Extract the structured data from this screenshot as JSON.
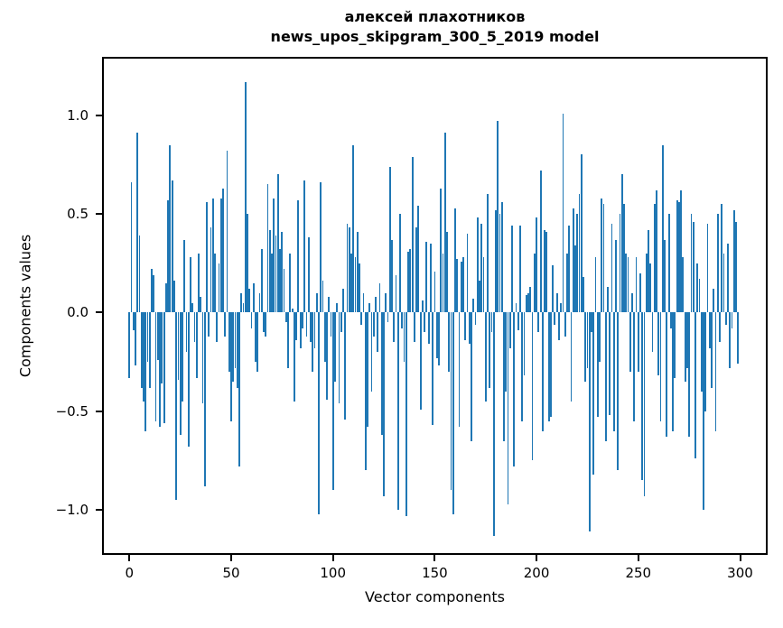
{
  "figure": {
    "title_line1": "алексей плахотников",
    "title_line2": "news_upos_skipgram_300_5_2019 model",
    "xlabel": "Vector components",
    "ylabel": "Components values",
    "background_color": "#ffffff",
    "spine_color": "#000000",
    "x_tick_labels": [
      "0",
      "50",
      "100",
      "150",
      "200",
      "250",
      "300"
    ],
    "y_tick_labels": [
      "1.0",
      "0.5",
      "0.0",
      "−0.5",
      "−1.0"
    ]
  },
  "chart_data": {
    "type": "bar",
    "title": "алексей плахотников\nnews_upos_skipgram_300_5_2019 model",
    "xlabel": "Vector components",
    "ylabel": "Components values",
    "bar_color": "#1f77b4",
    "grid": false,
    "legend": null,
    "n_components": 300,
    "x_start": 0,
    "xlim": [
      -15,
      314
    ],
    "ylim": [
      -1.228,
      1.296
    ],
    "x_ticks": [
      0,
      50,
      100,
      150,
      200,
      250,
      300
    ],
    "y_ticks": [
      1.0,
      0.5,
      0.0,
      -0.5,
      -1.0
    ],
    "values": [
      -0.33,
      0.66,
      -0.09,
      -0.27,
      0.91,
      0.39,
      -0.38,
      -0.45,
      -0.6,
      -0.25,
      -0.38,
      0.22,
      0.19,
      -0.55,
      -0.24,
      -0.58,
      -0.36,
      -0.56,
      0.15,
      0.57,
      0.85,
      0.67,
      0.16,
      -0.95,
      -0.34,
      -0.62,
      -0.45,
      0.37,
      -0.2,
      -0.68,
      0.28,
      0.05,
      -0.15,
      -0.33,
      0.3,
      0.08,
      -0.46,
      -0.88,
      0.56,
      -0.12,
      0.43,
      0.58,
      0.3,
      -0.15,
      0.25,
      0.58,
      0.63,
      -0.12,
      0.82,
      -0.3,
      -0.55,
      -0.35,
      -0.28,
      -0.38,
      -0.78,
      0.1,
      0.05,
      1.17,
      0.5,
      0.12,
      -0.08,
      0.15,
      -0.25,
      -0.3,
      0.1,
      0.32,
      -0.1,
      -0.12,
      0.65,
      0.42,
      0.3,
      0.58,
      0.39,
      0.7,
      0.32,
      0.41,
      0.22,
      -0.05,
      -0.28,
      0.3,
      0.02,
      -0.45,
      -0.14,
      0.57,
      -0.18,
      -0.08,
      0.67,
      -0.12,
      0.38,
      -0.15,
      -0.3,
      -0.18,
      0.1,
      -1.02,
      0.66,
      0.16,
      -0.25,
      -0.44,
      0.08,
      -0.12,
      -0.9,
      -0.35,
      0.05,
      -0.46,
      -0.1,
      0.12,
      -0.54,
      0.45,
      0.43,
      0.3,
      0.85,
      0.28,
      0.41,
      0.25,
      -0.06,
      0.1,
      -0.8,
      -0.58,
      0.05,
      -0.4,
      -0.12,
      0.08,
      -0.2,
      0.15,
      -0.62,
      -0.93,
      0.1,
      -0.05,
      0.74,
      0.37,
      -0.15,
      0.19,
      -1.0,
      0.5,
      -0.08,
      -0.25,
      -1.03,
      0.31,
      0.32,
      0.79,
      -0.15,
      0.43,
      0.54,
      -0.49,
      0.06,
      -0.1,
      0.36,
      -0.16,
      0.35,
      -0.57,
      0.21,
      -0.23,
      -0.27,
      0.63,
      0.3,
      0.91,
      0.41,
      -0.3,
      -0.9,
      -1.02,
      0.53,
      0.27,
      -0.58,
      0.26,
      0.28,
      -0.14,
      0.4,
      -0.16,
      -0.65,
      0.07,
      -0.06,
      0.48,
      0.16,
      0.45,
      0.28,
      -0.45,
      0.6,
      -0.38,
      -0.1,
      -1.13,
      0.52,
      0.97,
      0.5,
      0.56,
      -0.65,
      -0.4,
      -0.97,
      -0.18,
      0.44,
      -0.78,
      0.05,
      -0.09,
      0.44,
      -0.55,
      -0.32,
      0.09,
      0.1,
      0.13,
      -0.75,
      0.3,
      0.48,
      -0.1,
      0.72,
      -0.6,
      0.42,
      0.41,
      -0.55,
      -0.53,
      0.24,
      -0.06,
      0.1,
      -0.14,
      0.05,
      1.01,
      -0.12,
      0.3,
      0.44,
      -0.45,
      0.53,
      0.34,
      0.5,
      0.6,
      0.8,
      0.18,
      -0.35,
      -0.28,
      -1.11,
      -0.1,
      -0.82,
      0.28,
      -0.53,
      -0.25,
      0.58,
      0.55,
      -0.65,
      0.13,
      -0.52,
      0.45,
      -0.6,
      0.37,
      -0.8,
      0.5,
      0.7,
      0.55,
      0.3,
      0.28,
      -0.3,
      0.1,
      -0.55,
      0.28,
      -0.3,
      0.2,
      -0.85,
      -0.93,
      0.3,
      0.42,
      0.25,
      -0.2,
      0.55,
      0.62,
      -0.32,
      -0.55,
      0.85,
      0.37,
      -0.63,
      0.5,
      -0.08,
      -0.6,
      -0.33,
      0.57,
      0.56,
      0.62,
      0.28,
      -0.35,
      -0.28,
      -0.63,
      0.5,
      0.46,
      -0.74,
      0.25,
      0.17,
      -0.4,
      -1.0,
      -0.5,
      0.45,
      -0.18,
      -0.38,
      0.12,
      -0.6,
      0.5,
      -0.15,
      0.55,
      0.3,
      -0.06,
      0.35,
      -0.28,
      -0.08,
      0.52,
      0.46,
      -0.26
    ]
  }
}
